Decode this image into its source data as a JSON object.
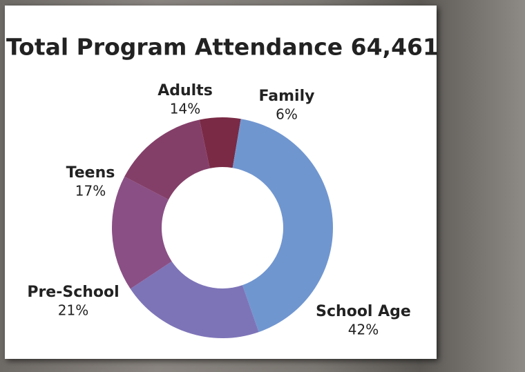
{
  "chart_data": {
    "type": "donut",
    "title": "Total Program Attendance 64,461",
    "categories": [
      "Family",
      "School Age",
      "Pre-School",
      "Teens",
      "Adults"
    ],
    "values": [
      6,
      42,
      21,
      17,
      14
    ],
    "value_labels": [
      "6%",
      "42%",
      "21%",
      "17%",
      "14%"
    ],
    "colors": [
      "#7a2a45",
      "#7096d0",
      "#7d74b8",
      "#8a4f85",
      "#843f69"
    ]
  }
}
